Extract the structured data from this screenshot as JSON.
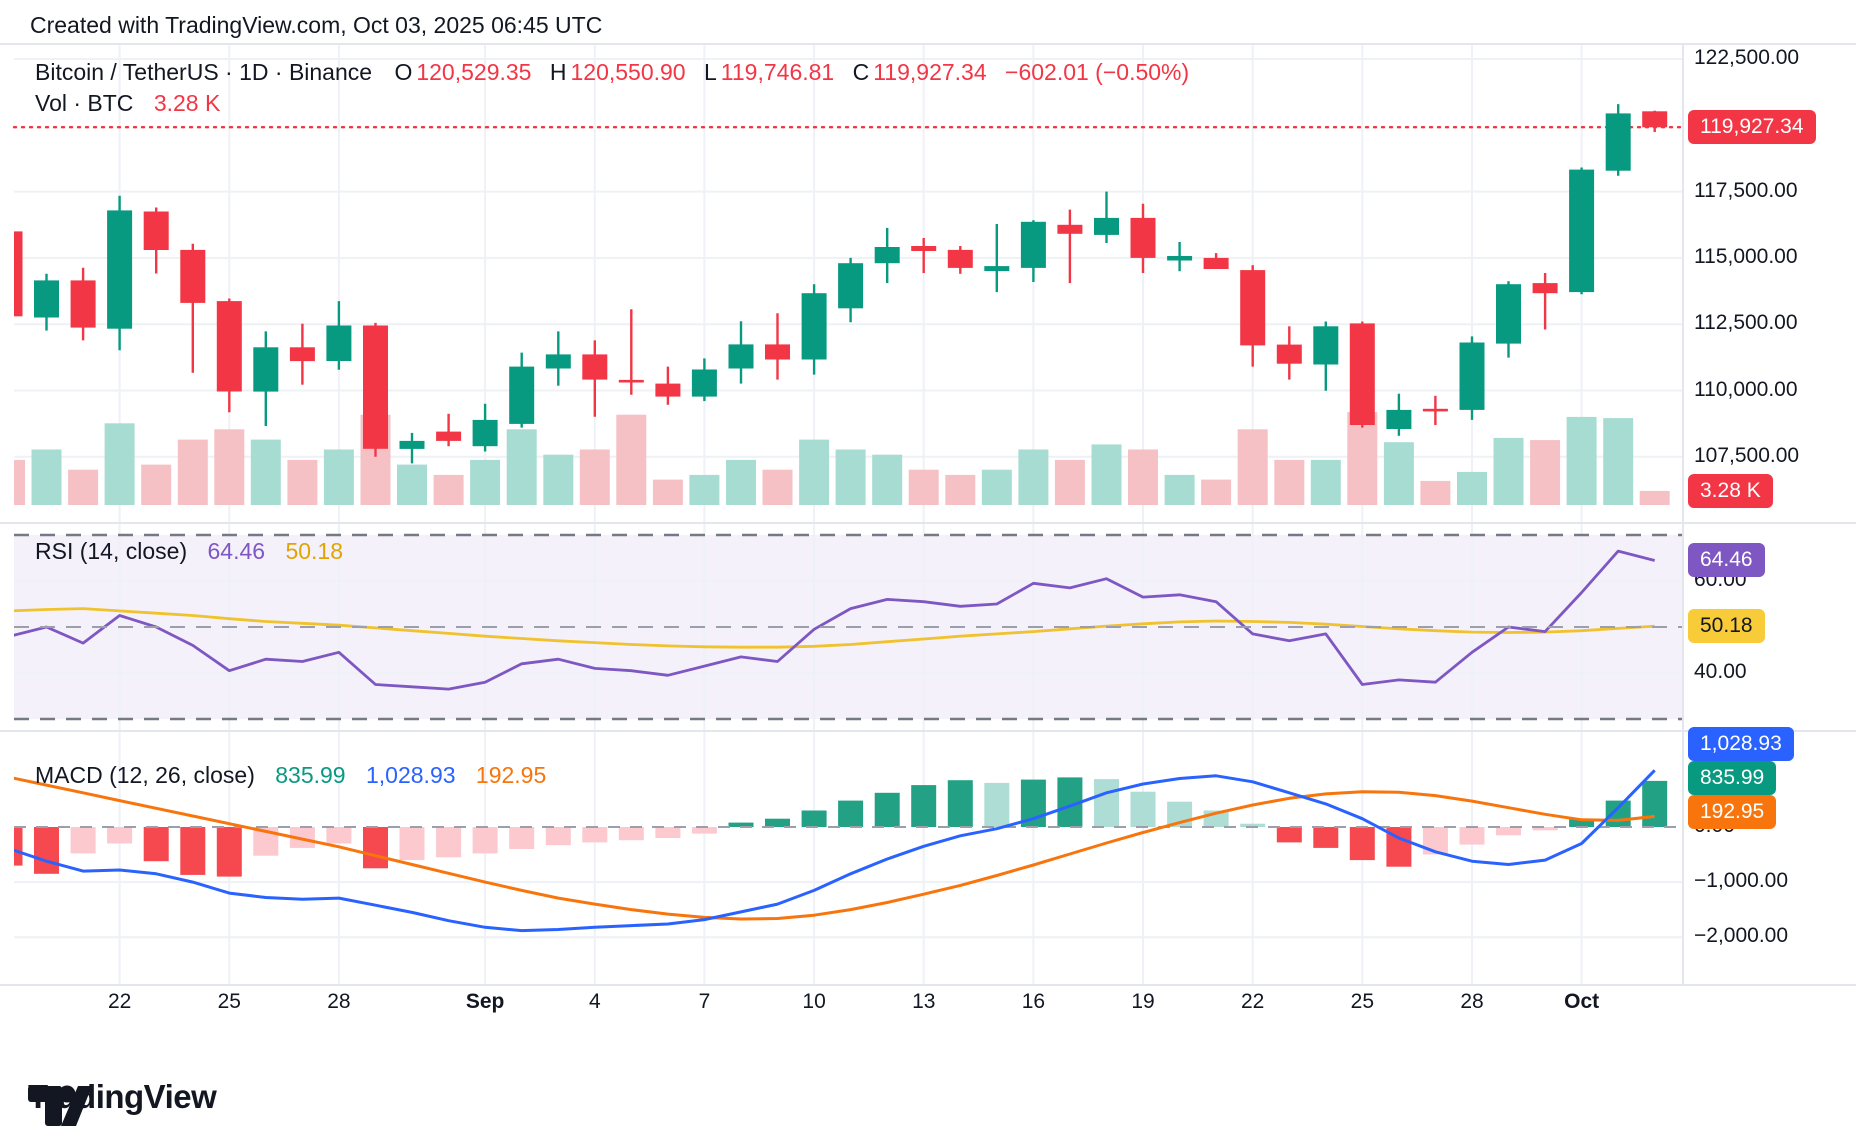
{
  "header": {
    "credit": "Created with TradingView.com, Oct 03, 2025 06:45 UTC"
  },
  "legend": {
    "title": "Bitcoin / TetherUS · 1D · Binance",
    "o_label": "O",
    "o": "120,529.35",
    "h_label": "H",
    "h": "120,550.90",
    "l_label": "L",
    "l": "119,746.81",
    "c_label": "C",
    "c": "119,927.34",
    "change": "−602.01 (−0.50%)"
  },
  "vol": {
    "label": "Vol · BTC",
    "value": "3.28 K"
  },
  "rsi": {
    "label": "RSI (14, close)",
    "value": "64.46",
    "ma": "50.18"
  },
  "macd": {
    "label": "MACD (12, 26, close)",
    "hist": "835.99",
    "macd": "1,028.93",
    "signal": "192.95"
  },
  "logo": {
    "text": "TradingView"
  },
  "price_axis": {
    "labels": [
      {
        "text": "122,500.00",
        "price": 122500
      },
      {
        "text": "117,500.00",
        "price": 117500
      },
      {
        "text": "115,000.00",
        "price": 115000
      },
      {
        "text": "112,500.00",
        "price": 112500
      },
      {
        "text": "110,000.00",
        "price": 110000
      },
      {
        "text": "107,500.00",
        "price": 107500
      }
    ],
    "close_badge": "119,927.34",
    "vol_badge": "3.28 K"
  },
  "rsi_axis": {
    "labels": [
      {
        "text": "60.00",
        "value": 60
      },
      {
        "text": "40.00",
        "value": 40
      }
    ],
    "value_badge": "64.46",
    "ma_badge": "50.18"
  },
  "macd_axis": {
    "labels": [
      {
        "text": "0.00",
        "value": 0
      },
      {
        "text": "−1,000.00",
        "value": -1000
      },
      {
        "text": "−2,000.00",
        "value": -2000
      }
    ],
    "macd_badge": "1,028.93",
    "hist_badge": "835.99",
    "signal_badge": "192.95"
  },
  "x_axis": {
    "labels": [
      {
        "text": "22",
        "index": 3,
        "bold": false
      },
      {
        "text": "25",
        "index": 6,
        "bold": false
      },
      {
        "text": "28",
        "index": 9,
        "bold": false
      },
      {
        "text": "Sep",
        "index": 13,
        "bold": true
      },
      {
        "text": "4",
        "index": 16,
        "bold": false
      },
      {
        "text": "7",
        "index": 19,
        "bold": false
      },
      {
        "text": "10",
        "index": 22,
        "bold": false
      },
      {
        "text": "13",
        "index": 25,
        "bold": false
      },
      {
        "text": "16",
        "index": 28,
        "bold": false
      },
      {
        "text": "19",
        "index": 31,
        "bold": false
      },
      {
        "text": "22",
        "index": 34,
        "bold": false
      },
      {
        "text": "25",
        "index": 37,
        "bold": false
      },
      {
        "text": "28",
        "index": 40,
        "bold": false
      },
      {
        "text": "Oct",
        "index": 43,
        "bold": true
      }
    ]
  },
  "colors": {
    "up": "#089981",
    "down": "#f23645",
    "vol_up": "#a7dcd3",
    "vol_down": "#f6c1c5",
    "hist_up": "#22a185",
    "hist_up_light": "#aeddd5",
    "hist_down": "#f5484f",
    "hist_down_light": "#fbc9ce",
    "macd_line": "#2962ff",
    "signal_line": "#f7750c",
    "rsi_line": "#7e57c2",
    "rsi_ma": "#f0c22e",
    "rsi_badge": "#7e57c2",
    "rsi_ma_badge": "#f8cb38",
    "grid": "#eef1f5",
    "band": "#f4f1fb",
    "dash_dark": "#757983",
    "dash_mid": "#9b9eab",
    "text": "#131722",
    "separator": "#e3e6ec"
  },
  "chart_data": {
    "type": "candlestick",
    "symbol": "Bitcoin / TetherUS",
    "interval": "1D",
    "exchange": "Binance",
    "subtitle_indicators": [
      "Vol · BTC",
      "RSI (14, close)",
      "MACD (12, 26, close)"
    ],
    "last_values": {
      "open": 120529.35,
      "high": 120550.9,
      "low": 119746.81,
      "close": 119927.34,
      "change": -602.01,
      "change_pct": -0.5,
      "volume_k": 3.28,
      "rsi": 64.46,
      "rsi_ma": 50.18,
      "macd": 1028.93,
      "macd_hist": 835.99,
      "macd_signal": 192.95
    },
    "close_line": 119927.34,
    "price_range": [
      106500,
      123500
    ],
    "dates": [
      "Aug 19",
      "Aug 20",
      "Aug 21",
      "Aug 22",
      "Aug 23",
      "Aug 24",
      "Aug 25",
      "Aug 26",
      "Aug 27",
      "Aug 28",
      "Aug 29",
      "Aug 30",
      "Aug 31",
      "Sep 1",
      "Sep 2",
      "Sep 3",
      "Sep 4",
      "Sep 5",
      "Sep 6",
      "Sep 7",
      "Sep 8",
      "Sep 9",
      "Sep 10",
      "Sep 11",
      "Sep 12",
      "Sep 13",
      "Sep 14",
      "Sep 15",
      "Sep 16",
      "Sep 17",
      "Sep 18",
      "Sep 19",
      "Sep 20",
      "Sep 21",
      "Sep 22",
      "Sep 23",
      "Sep 24",
      "Sep 25",
      "Sep 26",
      "Sep 27",
      "Sep 28",
      "Sep 29",
      "Sep 30",
      "Oct 1",
      "Oct 2",
      "Oct 3"
    ],
    "ohlc": [
      [
        116000,
        116150,
        112700,
        112800
      ],
      [
        112750,
        114400,
        112260,
        114150
      ],
      [
        114150,
        114630,
        111890,
        112370
      ],
      [
        112330,
        117340,
        111520,
        116790
      ],
      [
        116750,
        116900,
        114410,
        115300
      ],
      [
        115300,
        115530,
        110670,
        113300
      ],
      [
        113370,
        113470,
        109180,
        109960
      ],
      [
        109960,
        112230,
        108660,
        111630
      ],
      [
        111630,
        112520,
        110220,
        111110
      ],
      [
        111110,
        113370,
        110780,
        112450
      ],
      [
        112450,
        112550,
        107500,
        107800
      ],
      [
        107800,
        108400,
        107250,
        108100
      ],
      [
        108450,
        109120,
        107900,
        108100
      ],
      [
        107900,
        109500,
        107700,
        108890
      ],
      [
        108740,
        111430,
        108600,
        110900
      ],
      [
        110830,
        112230,
        110180,
        111360
      ],
      [
        111360,
        111890,
        109010,
        110410
      ],
      [
        110400,
        113060,
        109840,
        110380
      ],
      [
        110260,
        110900,
        109460,
        109770
      ],
      [
        109770,
        111210,
        109600,
        110790
      ],
      [
        110830,
        112610,
        110260,
        111740
      ],
      [
        111740,
        112910,
        110410,
        111170
      ],
      [
        111170,
        114010,
        110600,
        113670
      ],
      [
        113100,
        115000,
        112570,
        114800
      ],
      [
        114800,
        116130,
        114050,
        115410
      ],
      [
        115450,
        115750,
        114430,
        115260
      ],
      [
        115300,
        115450,
        114400,
        114620
      ],
      [
        114500,
        116280,
        113710,
        114690
      ],
      [
        114620,
        116420,
        114090,
        116360
      ],
      [
        116250,
        116820,
        114050,
        115910
      ],
      [
        115870,
        117500,
        115560,
        116510
      ],
      [
        116510,
        117040,
        114430,
        115000
      ],
      [
        114900,
        115600,
        114500,
        115070
      ],
      [
        115000,
        115180,
        114580,
        114580
      ],
      [
        114540,
        114730,
        110900,
        111700
      ],
      [
        111730,
        112420,
        110410,
        111010
      ],
      [
        110980,
        112600,
        109990,
        112420
      ],
      [
        112530,
        112600,
        108600,
        108700
      ],
      [
        108550,
        109880,
        108290,
        109270
      ],
      [
        109310,
        109800,
        108700,
        109250
      ],
      [
        109270,
        112040,
        108890,
        111810
      ],
      [
        111770,
        114120,
        111240,
        114010
      ],
      [
        114050,
        114430,
        112300,
        113670
      ],
      [
        113710,
        118410,
        113630,
        118330
      ],
      [
        118290,
        120800,
        118100,
        120450
      ],
      [
        120529.35,
        120550.9,
        119746.81,
        119927.34
      ]
    ],
    "volume_k": [
      10.5,
      12.9,
      8.2,
      19.0,
      9.4,
      15.2,
      17.6,
      15.2,
      10.5,
      12.9,
      21.0,
      9.4,
      7.0,
      10.5,
      17.6,
      11.7,
      12.9,
      21.0,
      5.9,
      7.0,
      10.5,
      8.2,
      15.2,
      12.9,
      11.7,
      8.2,
      7.0,
      8.2,
      12.9,
      10.5,
      14.1,
      12.9,
      7.0,
      5.9,
      17.6,
      10.5,
      10.5,
      21.6,
      14.6,
      5.6,
      7.7,
      15.6,
      15.1,
      20.5,
      20.2,
      3.28
    ],
    "rsi": [
      48,
      50,
      46.5,
      52.5,
      50,
      46,
      40.5,
      43,
      42.5,
      44.5,
      37.5,
      37,
      36.5,
      38,
      42,
      43,
      41,
      40.5,
      39.5,
      41.5,
      43.5,
      42.5,
      49.5,
      54,
      56,
      55.5,
      54.5,
      55,
      59.5,
      58.5,
      60.5,
      56.5,
      57,
      55.5,
      48.5,
      47,
      48.5,
      37.5,
      38.5,
      38,
      44.5,
      50,
      49,
      57.5,
      66.5,
      64.46
    ],
    "rsi_ma": [
      53.5,
      53.8,
      54,
      53.5,
      53,
      52.5,
      51.8,
      51.2,
      50.8,
      50.4,
      49.8,
      49.2,
      48.6,
      48,
      47.5,
      47,
      46.6,
      46.2,
      45.9,
      45.7,
      45.6,
      45.6,
      45.8,
      46.2,
      46.8,
      47.4,
      48,
      48.5,
      49,
      49.6,
      50.2,
      50.7,
      51.1,
      51.3,
      51.2,
      51,
      50.6,
      50.1,
      49.6,
      49.2,
      48.9,
      48.8,
      48.9,
      49.2,
      49.7,
      50.18
    ],
    "rsi_levels": {
      "upper": 70,
      "middle": 50,
      "lower": 30
    },
    "macd": [
      -400,
      -620,
      -800,
      -780,
      -850,
      -1000,
      -1200,
      -1280,
      -1310,
      -1290,
      -1420,
      -1550,
      -1700,
      -1820,
      -1880,
      -1860,
      -1820,
      -1790,
      -1760,
      -1680,
      -1540,
      -1400,
      -1150,
      -850,
      -580,
      -350,
      -160,
      -30,
      150,
      380,
      620,
      780,
      880,
      930,
      820,
      620,
      420,
      150,
      -200,
      -450,
      -620,
      -680,
      -600,
      -300,
      350,
      1028.93
    ],
    "signal": [
      900,
      760,
      620,
      480,
      340,
      200,
      60,
      -80,
      -220,
      -360,
      -520,
      -680,
      -840,
      -1000,
      -1150,
      -1290,
      -1400,
      -1500,
      -1580,
      -1640,
      -1670,
      -1660,
      -1600,
      -1500,
      -1370,
      -1220,
      -1060,
      -880,
      -690,
      -490,
      -290,
      -100,
      80,
      250,
      400,
      520,
      600,
      640,
      630,
      570,
      470,
      350,
      230,
      130,
      120,
      192.95
    ],
    "hist": [
      -700,
      -850,
      -480,
      -300,
      -620,
      -870,
      -900,
      -520,
      -380,
      -300,
      -750,
      -600,
      -550,
      -480,
      -400,
      -330,
      -280,
      -240,
      -200,
      -120,
      80,
      150,
      300,
      480,
      620,
      760,
      850,
      800,
      860,
      900,
      870,
      640,
      460,
      300,
      60,
      -280,
      -380,
      -600,
      -720,
      -500,
      -320,
      -150,
      -60,
      150,
      480,
      835.99
    ]
  }
}
